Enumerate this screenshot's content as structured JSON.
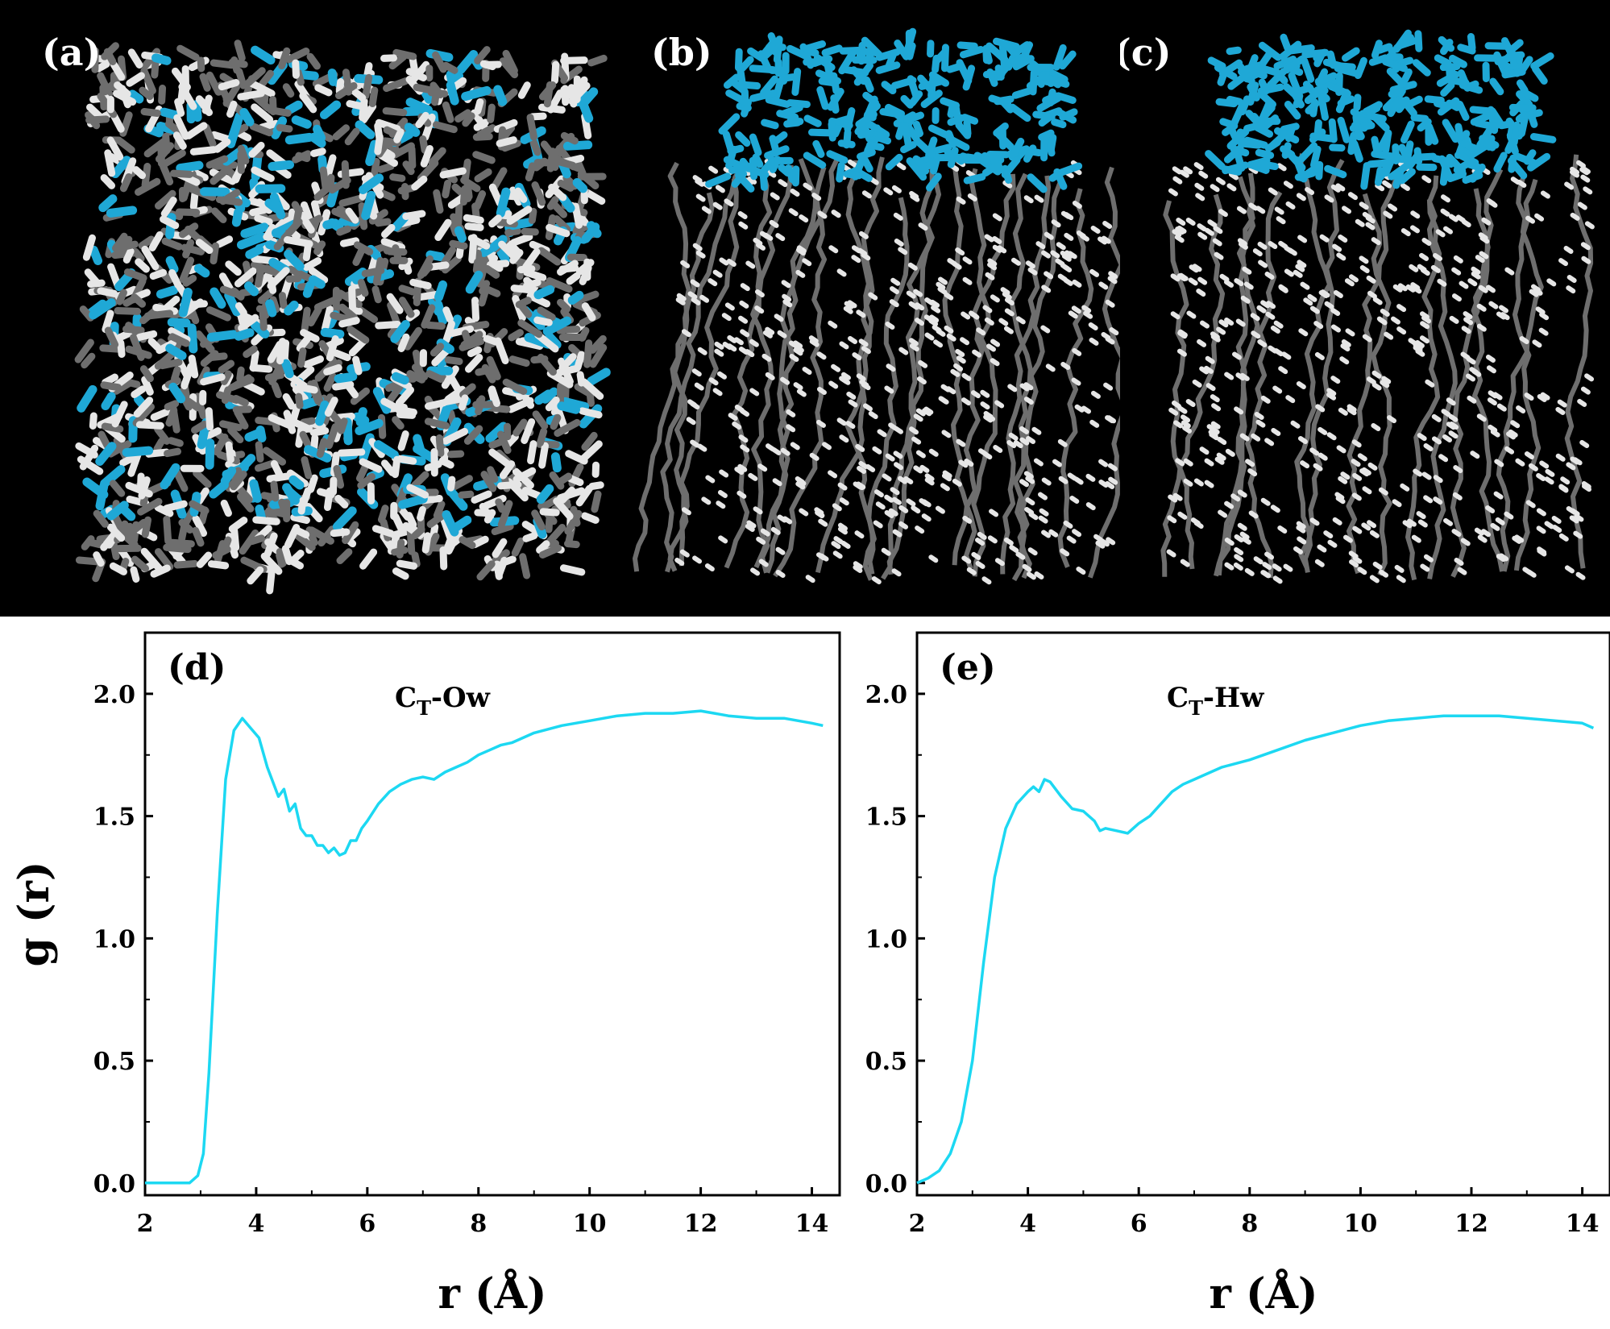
{
  "image_panels": [
    {
      "label": "(a)",
      "description": "top view of mixed molecules"
    },
    {
      "label": "(b)",
      "description": "side view, cyan molecules on top"
    },
    {
      "label": "(c)",
      "description": "side view, cyan molecules on top, ordered chains"
    }
  ],
  "colors": {
    "molecule_highlight": "#1fa8d6",
    "molecule_gray": "#6e6e6e",
    "molecule_white": "#e6e6e6",
    "background": "#000000",
    "line": "#1cd8f2"
  },
  "chart_data": [
    {
      "type": "line",
      "panel_label": "(d)",
      "series_label_main": "C",
      "series_label_sub": "T",
      "series_label_rest": "-Ow",
      "xlabel": "r (Å)",
      "ylabel": "g (r)",
      "xlim": [
        2,
        14.5
      ],
      "ylim": [
        -0.05,
        2.25
      ],
      "xticks": [
        "2",
        "4",
        "6",
        "8",
        "10",
        "12",
        "14"
      ],
      "yticks": [
        "0.0",
        "0.5",
        "1.0",
        "1.5",
        "2.0"
      ],
      "x": [
        2.0,
        2.5,
        2.8,
        2.95,
        3.05,
        3.15,
        3.3,
        3.45,
        3.6,
        3.75,
        3.9,
        4.05,
        4.2,
        4.4,
        4.5,
        4.6,
        4.7,
        4.8,
        4.9,
        5.0,
        5.1,
        5.2,
        5.3,
        5.4,
        5.5,
        5.6,
        5.7,
        5.8,
        5.9,
        6.0,
        6.2,
        6.4,
        6.6,
        6.8,
        7.0,
        7.2,
        7.4,
        7.6,
        7.8,
        8.0,
        8.2,
        8.4,
        8.6,
        8.8,
        9.0,
        9.5,
        10.0,
        10.5,
        11.0,
        11.5,
        12.0,
        12.5,
        13.0,
        13.5,
        14.0,
        14.2
      ],
      "y": [
        0.0,
        0.0,
        0.0,
        0.03,
        0.12,
        0.45,
        1.1,
        1.65,
        1.85,
        1.9,
        1.86,
        1.82,
        1.7,
        1.58,
        1.61,
        1.52,
        1.55,
        1.45,
        1.42,
        1.42,
        1.38,
        1.38,
        1.35,
        1.37,
        1.34,
        1.35,
        1.4,
        1.4,
        1.45,
        1.48,
        1.55,
        1.6,
        1.63,
        1.65,
        1.66,
        1.65,
        1.68,
        1.7,
        1.72,
        1.75,
        1.77,
        1.79,
        1.8,
        1.82,
        1.84,
        1.87,
        1.89,
        1.91,
        1.92,
        1.92,
        1.93,
        1.91,
        1.9,
        1.9,
        1.88,
        1.87
      ]
    },
    {
      "type": "line",
      "panel_label": "(e)",
      "series_label_main": "C",
      "series_label_sub": "T",
      "series_label_rest": "-Hw",
      "xlabel": "r (Å)",
      "ylabel": "",
      "xlim": [
        2,
        14.5
      ],
      "ylim": [
        -0.05,
        2.25
      ],
      "xticks": [
        "2",
        "4",
        "6",
        "8",
        "10",
        "12",
        "14"
      ],
      "yticks": [
        "0.0",
        "0.5",
        "1.0",
        "1.5",
        "2.0"
      ],
      "x": [
        2.0,
        2.2,
        2.4,
        2.6,
        2.8,
        3.0,
        3.2,
        3.4,
        3.6,
        3.8,
        4.0,
        4.1,
        4.2,
        4.3,
        4.4,
        4.6,
        4.8,
        5.0,
        5.2,
        5.3,
        5.4,
        5.6,
        5.8,
        6.0,
        6.2,
        6.4,
        6.6,
        6.8,
        7.0,
        7.2,
        7.5,
        8.0,
        8.5,
        9.0,
        9.5,
        10.0,
        10.5,
        11.0,
        11.5,
        12.0,
        12.5,
        13.0,
        13.5,
        14.0,
        14.2
      ],
      "y": [
        0.0,
        0.02,
        0.05,
        0.12,
        0.25,
        0.5,
        0.9,
        1.25,
        1.45,
        1.55,
        1.6,
        1.62,
        1.6,
        1.65,
        1.64,
        1.58,
        1.53,
        1.52,
        1.48,
        1.44,
        1.45,
        1.44,
        1.43,
        1.47,
        1.5,
        1.55,
        1.6,
        1.63,
        1.65,
        1.67,
        1.7,
        1.73,
        1.77,
        1.81,
        1.84,
        1.87,
        1.89,
        1.9,
        1.91,
        1.91,
        1.91,
        1.9,
        1.89,
        1.88,
        1.86
      ]
    }
  ]
}
